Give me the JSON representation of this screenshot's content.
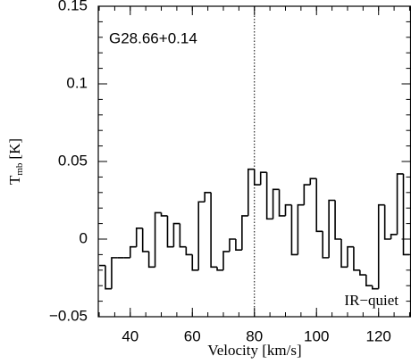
{
  "chart_data": {
    "type": "step",
    "xlabel": "Velocity [km/s]",
    "ylabel": "T",
    "ylabel_sub": "mb",
    "ylabel_unit": "[K]",
    "annotations": [
      "G28.66+0.14",
      "IR−quiet"
    ],
    "vline": 80,
    "x": [
      31,
      33,
      35,
      37,
      39,
      41,
      43,
      45,
      47,
      49,
      51,
      53,
      55,
      57,
      59,
      61,
      63,
      65,
      67,
      69,
      71,
      73,
      75,
      77,
      79,
      81,
      83,
      85,
      87,
      89,
      91,
      93,
      95,
      97,
      99,
      101,
      103,
      105,
      107,
      109,
      111,
      113,
      115,
      117,
      119,
      121,
      123,
      125,
      127,
      129
    ],
    "values": [
      -0.017,
      -0.032,
      -0.012,
      -0.012,
      -0.012,
      -0.005,
      0.007,
      -0.008,
      -0.018,
      0.017,
      0.015,
      -0.005,
      0.01,
      -0.005,
      -0.01,
      -0.02,
      0.024,
      0.03,
      -0.018,
      -0.02,
      -0.008,
      0.0,
      -0.007,
      0.015,
      0.045,
      0.035,
      0.043,
      0.013,
      0.032,
      0.015,
      0.022,
      -0.01,
      0.022,
      0.035,
      0.039,
      0.005,
      -0.012,
      0.025,
      0.0,
      -0.018,
      -0.005,
      -0.02,
      -0.023,
      -0.03,
      -0.032,
      0.022,
      0.0,
      0.003,
      0.042,
      -0.01
    ],
    "color": "#000000",
    "xlim": [
      29.7,
      130.3
    ],
    "ylim": [
      -0.05,
      0.15
    ],
    "xticks": [
      40,
      60,
      80,
      100,
      120
    ],
    "yticks": [
      {
        "value": -0.05,
        "label": "−0.05"
      },
      0,
      0.05,
      0.1,
      0.15
    ],
    "minor_ticks": {
      "x": 5,
      "y": 0.01
    }
  }
}
